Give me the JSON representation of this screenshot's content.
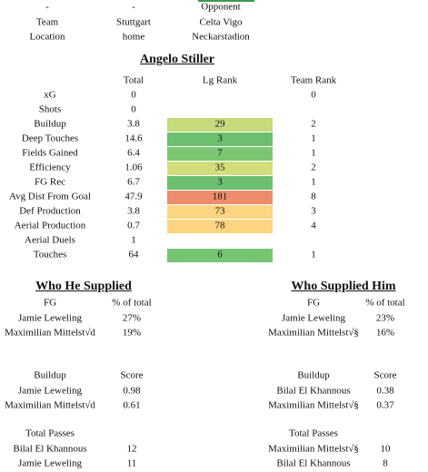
{
  "match_info": {
    "rows": [
      [
        "-",
        "-",
        "Opponent"
      ],
      [
        "Team",
        "Stuttgart",
        "Celta Vigo"
      ],
      [
        "Location",
        "home",
        "Neckarstadion"
      ]
    ]
  },
  "player": {
    "name": "Angelo Stiller",
    "columns": [
      "Total",
      "Lg Rank",
      "Team Rank"
    ],
    "rows": [
      {
        "label": "xG",
        "total": 0,
        "team_rank": 0
      },
      {
        "label": "Shots",
        "total": 0
      },
      {
        "label": "Buildup",
        "total": 3.8,
        "lg_rank": 29,
        "lg_color": "#c4da7b",
        "team_rank": 2
      },
      {
        "label": "Deep Touches",
        "total": 14.6,
        "lg_rank": 3,
        "lg_color": "#6bbf6f",
        "team_rank": 1
      },
      {
        "label": "Fields Gained",
        "total": 6.4,
        "lg_rank": 7,
        "lg_color": "#7cc673",
        "team_rank": 1
      },
      {
        "label": "Efficiency",
        "total": 1.06,
        "lg_rank": 35,
        "lg_color": "#d2de7c",
        "team_rank": 2
      },
      {
        "label": "FG Rec",
        "total": 6.7,
        "lg_rank": 3,
        "lg_color": "#6bbf6f",
        "team_rank": 1
      },
      {
        "label": "Avg Dist From Goal",
        "total": 47.9,
        "lg_rank": 181,
        "lg_color": "#ee8c6f",
        "team_rank": 8
      },
      {
        "label": "Def Production",
        "total": 3.8,
        "lg_rank": 73,
        "lg_color": "#fcd580",
        "team_rank": 3
      },
      {
        "label": "Aerial Production",
        "total": 0.7,
        "lg_rank": 78,
        "lg_color": "#fdd480",
        "team_rank": 4
      },
      {
        "label": "Aerial Duels",
        "total": 1
      },
      {
        "label": "Touches",
        "total": 64,
        "lg_rank": 6,
        "lg_color": "#77c472",
        "team_rank": 1
      }
    ]
  },
  "supply": [
    {
      "title": "Who He Supplied",
      "blocks": [
        {
          "headers": [
            "FG",
            "% of total"
          ],
          "rows": [
            [
              "Jamie Leweling",
              "27%"
            ],
            [
              "Maximilian Mittelst√d",
              "19%"
            ]
          ]
        },
        {
          "headers": [
            "Buildup",
            "Score"
          ],
          "rows": [
            [
              "Jamie Leweling",
              0.98
            ],
            [
              "Maximilian Mittelst√d",
              0.61
            ]
          ]
        },
        {
          "headers": [
            "Total Passes"
          ],
          "rows": [
            [
              "Bilal El Khannous",
              12
            ],
            [
              "Jamie Leweling",
              11
            ]
          ]
        }
      ]
    },
    {
      "title": "Who Supplied Him",
      "blocks": [
        {
          "headers": [
            "FG",
            "% of total"
          ],
          "rows": [
            [
              "Jamie Leweling",
              "23%"
            ],
            [
              "Maximilian Mittelst√§",
              "16%"
            ]
          ]
        },
        {
          "headers": [
            "Buildup",
            "Score"
          ],
          "rows": [
            [
              "Bilal El Khannous",
              0.38
            ],
            [
              "Maximilian Mittelst√§",
              0.37
            ]
          ]
        },
        {
          "headers": [
            "Total Passes"
          ],
          "rows": [
            [
              "Maximilian Mittelst√§",
              10
            ],
            [
              "Bilal El Khannous",
              8
            ]
          ]
        }
      ]
    }
  ]
}
